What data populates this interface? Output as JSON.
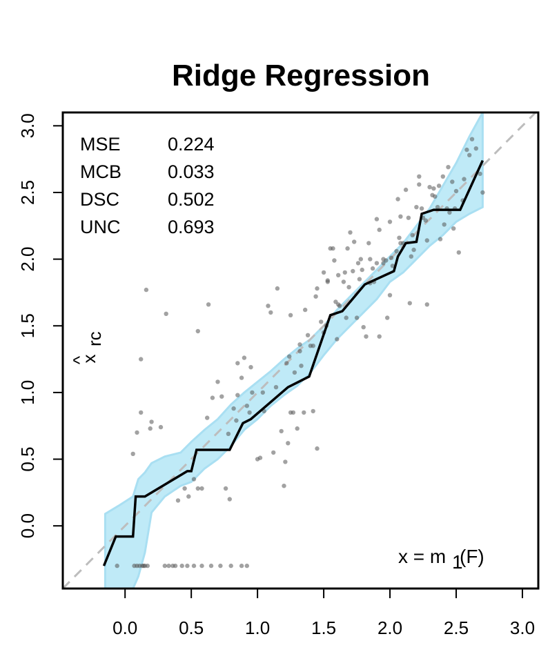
{
  "chart_data": {
    "type": "scatter",
    "title": "Ridge Regression",
    "xlabel": "",
    "ylabel": "x̂_rc",
    "ylabel_main": "x",
    "ylabel_hat": "^",
    "ylabel_sub": "rc",
    "xlim": [
      -0.47,
      3.12
    ],
    "ylim": [
      -0.47,
      3.1
    ],
    "x_ticks": [
      0.0,
      0.5,
      1.0,
      1.5,
      2.0,
      2.5,
      3.0
    ],
    "x_tick_labels": [
      "0.0",
      "0.5",
      "1.0",
      "1.5",
      "2.0",
      "2.5",
      "3.0"
    ],
    "y_ticks": [
      0.0,
      0.5,
      1.0,
      1.5,
      2.0,
      2.5,
      3.0
    ],
    "y_tick_labels": [
      "0.0",
      "0.5",
      "1.0",
      "1.5",
      "2.0",
      "2.5",
      "3.0"
    ],
    "grid": false,
    "colors": {
      "band": "#bfeaf7",
      "band_edge": "#a9dff2",
      "line": "#000000",
      "diagonal": "#bdbdbd",
      "points": "#555555"
    },
    "stats": [
      {
        "name": "MSE",
        "value": "0.224"
      },
      {
        "name": "MCB",
        "value": "0.033"
      },
      {
        "name": "DSC",
        "value": "0.502"
      },
      {
        "name": "UNC",
        "value": "0.693"
      }
    ],
    "annotation": {
      "lhs": "x = m",
      "sub": "1",
      "rhs": "(F)"
    },
    "reliability_curve": {
      "x": [
        -0.16,
        -0.07,
        -0.07,
        0.06,
        0.06,
        0.08,
        0.08,
        0.15,
        0.15,
        0.47,
        0.47,
        0.5,
        0.5,
        0.54,
        0.54,
        0.79,
        0.79,
        0.89,
        0.89,
        0.95,
        0.95,
        1.23,
        1.23,
        1.39,
        1.39,
        1.55,
        1.55,
        1.64,
        1.64,
        1.81,
        1.81,
        2.03,
        2.03,
        2.06,
        2.06,
        2.12,
        2.12,
        2.2,
        2.2,
        2.24,
        2.24,
        2.33,
        2.33,
        2.53,
        2.53,
        2.7
      ],
      "y": [
        -0.3,
        -0.08,
        -0.08,
        -0.08,
        -0.08,
        0.22,
        0.22,
        0.22,
        0.22,
        0.41,
        0.41,
        0.41,
        0.41,
        0.57,
        0.57,
        0.57,
        0.57,
        0.77,
        0.77,
        0.8,
        0.8,
        1.04,
        1.04,
        1.12,
        1.12,
        1.58,
        1.58,
        1.61,
        1.61,
        1.81,
        1.81,
        1.91,
        1.91,
        2.02,
        2.02,
        2.12,
        2.12,
        2.13,
        2.13,
        2.34,
        2.34,
        2.37,
        2.37,
        2.37,
        2.37,
        2.74
      ]
    },
    "consistency_band": {
      "x": [
        -0.15,
        -0.05,
        0.06,
        0.1,
        0.15,
        0.2,
        0.3,
        0.42,
        0.5,
        0.6,
        0.7,
        0.8,
        0.9,
        1.0,
        1.1,
        1.2,
        1.3,
        1.4,
        1.5,
        1.6,
        1.7,
        1.8,
        1.9,
        2.0,
        2.1,
        2.2,
        2.3,
        2.4,
        2.5,
        2.6,
        2.7
      ],
      "lower": [
        -0.47,
        -0.47,
        -0.47,
        -0.38,
        -0.2,
        0.1,
        0.22,
        0.3,
        0.33,
        0.43,
        0.5,
        0.6,
        0.72,
        0.8,
        0.9,
        0.98,
        1.05,
        1.15,
        1.28,
        1.4,
        1.5,
        1.6,
        1.7,
        1.83,
        1.9,
        2.0,
        2.1,
        2.18,
        2.28,
        2.34,
        2.39
      ],
      "upper": [
        0.09,
        0.15,
        0.22,
        0.35,
        0.4,
        0.47,
        0.52,
        0.55,
        0.63,
        0.72,
        0.8,
        0.91,
        1.0,
        1.08,
        1.16,
        1.25,
        1.33,
        1.4,
        1.5,
        1.62,
        1.72,
        1.82,
        1.92,
        2.02,
        2.12,
        2.25,
        2.38,
        2.55,
        2.72,
        2.92,
        3.1
      ]
    },
    "points": {
      "x": [
        -0.06,
        0.07,
        0.09,
        0.11,
        0.13,
        0.14,
        0.15,
        0.17,
        0.3,
        0.33,
        0.36,
        0.38,
        0.43,
        0.47,
        0.52,
        0.58,
        0.65,
        0.72,
        0.8,
        0.88,
        0.92,
        0.12,
        0.16,
        0.31,
        0.06,
        0.09,
        0.12,
        0.19,
        0.2,
        0.27,
        0.4,
        0.45,
        0.48,
        0.52,
        0.55,
        0.58,
        0.63,
        0.66,
        0.7,
        0.73,
        0.76,
        0.79,
        0.82,
        0.85,
        0.88,
        0.92,
        0.95,
        1.0,
        1.05,
        1.08,
        1.12,
        1.15,
        1.18,
        1.2,
        1.21,
        1.23,
        1.25,
        1.27,
        1.3,
        1.32,
        1.35,
        1.38,
        1.42,
        1.45,
        1.48,
        1.5,
        1.53,
        1.55,
        1.58,
        1.6,
        1.62,
        1.65,
        1.67,
        1.7,
        1.72,
        1.75,
        1.78,
        1.8,
        1.82,
        1.85,
        1.88,
        1.9,
        1.92,
        1.95,
        1.98,
        2.0,
        2.02,
        2.05,
        2.08,
        2.1,
        2.12,
        2.15,
        2.18,
        2.2,
        2.22,
        2.25,
        2.28,
        2.3,
        2.33,
        2.36,
        2.38,
        2.4,
        2.43,
        2.45,
        2.48,
        2.5,
        2.52,
        2.55,
        2.58,
        2.6,
        2.62,
        2.65,
        2.68,
        2.7,
        0.55,
        0.62,
        0.78,
        0.85,
        0.9,
        0.96,
        1.02,
        1.1,
        1.22,
        1.25,
        1.33,
        1.4,
        1.45,
        1.53,
        1.57,
        1.61,
        1.66,
        1.73,
        1.79,
        1.85,
        1.9,
        1.95,
        2.01,
        2.06,
        2.14,
        2.22,
        2.28,
        2.34,
        2.41,
        2.49,
        2.56,
        0.84,
        0.94,
        1.04,
        1.14,
        1.24,
        1.32,
        1.42,
        1.52,
        1.61,
        1.69,
        1.77,
        1.87,
        1.97,
        2.07,
        2.17,
        2.27,
        2.37,
        2.47,
        1.28,
        1.36,
        1.44,
        1.5,
        1.59,
        1.68,
        1.76,
        1.84,
        1.92,
        2.0,
        2.08,
        2.16,
        2.24,
        2.32,
        2.44
      ],
      "y": [
        -0.3,
        -0.3,
        -0.3,
        -0.3,
        -0.3,
        -0.3,
        -0.3,
        -0.3,
        -0.3,
        -0.3,
        -0.3,
        -0.3,
        -0.3,
        -0.3,
        -0.3,
        -0.3,
        -0.3,
        -0.3,
        -0.3,
        -0.3,
        -0.3,
        1.25,
        1.77,
        1.59,
        0.54,
        0.7,
        0.85,
        0.73,
        0.78,
        0.74,
        0.19,
        0.28,
        0.22,
        0.35,
        1.46,
        0.28,
        1.66,
        0.96,
        1.08,
        0.97,
        0.28,
        0.2,
        0.88,
        1.22,
        1.11,
        0.9,
        1.19,
        0.5,
        0.86,
        1.65,
        0.55,
        1.78,
        0.71,
        0.3,
        0.48,
        0.62,
        1.58,
        0.85,
        0.73,
        1.36,
        0.85,
        1.43,
        0.86,
        1.78,
        1.53,
        1.9,
        1.83,
        2.08,
        1.99,
        1.4,
        1.65,
        1.83,
        1.56,
        2.2,
        1.91,
        1.56,
        2.0,
        1.49,
        1.42,
        2.0,
        1.83,
        1.97,
        1.42,
        2.0,
        1.56,
        1.73,
        1.95,
        2.06,
        2.12,
        2.12,
        2.52,
        1.67,
        2.07,
        2.39,
        2.62,
        2.31,
        1.66,
        2.54,
        2.53,
        2.39,
        2.15,
        2.62,
        2.38,
        2.35,
        2.23,
        2.51,
        2.05,
        2.44,
        2.82,
        2.78,
        2.9,
        2.83,
        2.64,
        2.5,
        0.28,
        0.81,
        0.69,
        0.98,
        1.26,
        1.0,
        0.51,
        1.6,
        1.22,
        0.85,
        1.2,
        1.35,
        0.58,
        1.84,
        2.08,
        1.88,
        1.9,
        2.13,
        1.92,
        1.82,
        2.3,
        1.97,
        2.01,
        2.45,
        2.31,
        2.56,
        2.14,
        2.47,
        2.26,
        2.38,
        2.6,
        0.79,
        0.85,
        1.0,
        1.04,
        1.27,
        1.31,
        1.35,
        1.5,
        1.66,
        1.79,
        1.85,
        1.93,
        1.99,
        2.16,
        2.18,
        2.29,
        2.55,
        2.58,
        1.15,
        1.62,
        1.72,
        1.45,
        1.68,
        2.08,
        1.97,
        2.12,
        2.22,
        2.28,
        2.32,
        2.02,
        2.38,
        2.48,
        2.69
      ]
    }
  }
}
